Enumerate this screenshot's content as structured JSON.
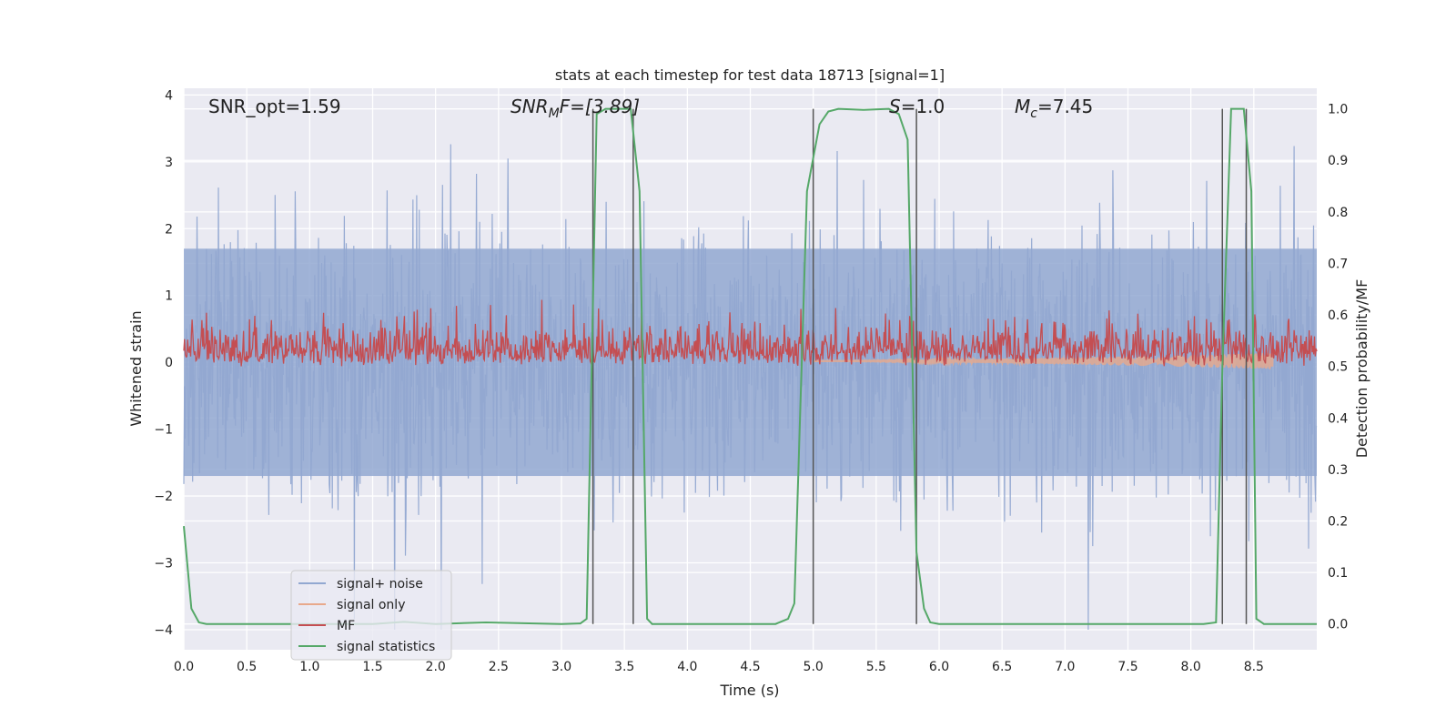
{
  "chart_data": {
    "type": "line",
    "title": "stats at each timestep for test data 18713 [signal=1]",
    "xlabel": "Time (s)",
    "ylabel_left": "Whitened strain",
    "ylabel_right": "Detection probability/MF",
    "xlim": [
      0.0,
      9.0
    ],
    "ylim_left": [
      -4.3,
      4.1
    ],
    "ylim_right": [
      -0.05,
      1.04
    ],
    "x_ticks": [
      "0.0",
      "0.5",
      "1.0",
      "1.5",
      "2.0",
      "2.5",
      "3.0",
      "3.5",
      "4.0",
      "4.5",
      "5.0",
      "5.5",
      "6.0",
      "6.5",
      "7.0",
      "7.5",
      "8.0",
      "8.5"
    ],
    "y_ticks_left": [
      "−4",
      "−3",
      "−2",
      "−1",
      "0",
      "1",
      "2",
      "3",
      "4"
    ],
    "y_ticks_right": [
      "0.0",
      "0.1",
      "0.2",
      "0.3",
      "0.4",
      "0.5",
      "0.6",
      "0.7",
      "0.8",
      "0.9",
      "1.0"
    ],
    "grid": true,
    "legend_position": "lower-left",
    "annotations": {
      "snr_opt": "SNR_opt=1.59",
      "snr_mf_sym": "SNR",
      "snr_mf_sub": "M",
      "snr_mf_rest": "F=[3.89]",
      "s_sym": "S",
      "s_rest": "=1.0",
      "mc_sym": "M",
      "mc_sub": "c",
      "mc_rest": "=7.45"
    },
    "series": [
      {
        "name": "signal+ noise",
        "color": "#92a8d1",
        "style": "dense noise band",
        "x_range": [
          0.0,
          9.0
        ],
        "typical_range": [
          -1.7,
          1.7
        ],
        "extreme_range": [
          -4.0,
          3.7
        ]
      },
      {
        "name": "signal only",
        "color": "#e8a98b",
        "style": "chirp near zero",
        "x_range": [
          5.0,
          8.65
        ],
        "amplitude_end": 0.12
      },
      {
        "name": "MF",
        "color": "#c44e52",
        "style": "dense noisy trace",
        "x_range": [
          0.0,
          9.0
        ],
        "typical_range": [
          0.5,
          0.59
        ],
        "extreme_range": [
          0.5,
          0.63
        ]
      },
      {
        "name": "signal statistics",
        "color": "#55a868",
        "x": [
          0.0,
          0.06,
          0.12,
          0.18,
          1.0,
          1.5,
          1.75,
          2.0,
          2.4,
          3.0,
          3.15,
          3.2,
          3.28,
          3.35,
          3.45,
          3.55,
          3.62,
          3.68,
          3.72,
          3.8,
          4.5,
          4.7,
          4.8,
          4.85,
          4.95,
          5.05,
          5.12,
          5.2,
          5.4,
          5.6,
          5.68,
          5.75,
          5.82,
          5.88,
          5.93,
          6.0,
          8.1,
          8.2,
          8.25,
          8.32,
          8.42,
          8.48,
          8.52,
          8.58,
          8.62,
          9.0
        ],
        "y": [
          0.19,
          0.03,
          0.003,
          0.0,
          0.0,
          0.0,
          0.004,
          0.0,
          0.003,
          0.0,
          0.001,
          0.01,
          0.99,
          1.0,
          1.0,
          1.0,
          0.84,
          0.01,
          0.0,
          0.0,
          0.0,
          0.0,
          0.01,
          0.04,
          0.84,
          0.97,
          0.995,
          1.0,
          0.998,
          1.0,
          0.99,
          0.94,
          0.14,
          0.03,
          0.003,
          0.0,
          0.0,
          0.003,
          0.5,
          1.0,
          1.0,
          0.84,
          0.01,
          0.0,
          0.0,
          0.0
        ]
      }
    ],
    "vertical_markers": {
      "color": "#555555",
      "x": [
        3.25,
        3.57,
        5.0,
        5.82,
        8.25,
        8.44
      ]
    }
  }
}
